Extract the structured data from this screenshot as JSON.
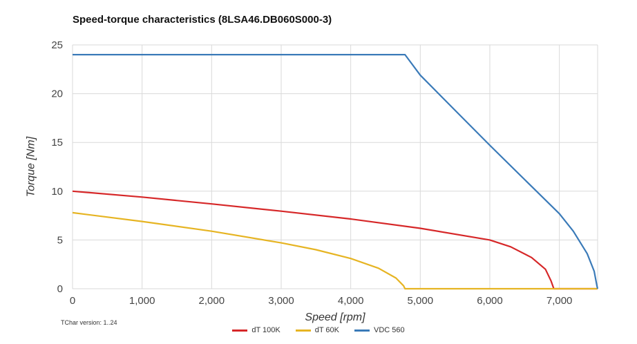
{
  "chart_data": {
    "type": "line",
    "title": "Speed-torque characteristics (8LSA46.DB060S000-3)",
    "xlabel": "Speed [rpm]",
    "ylabel": "Torque [Nm]",
    "xlim": [
      0,
      7550
    ],
    "ylim": [
      0,
      25
    ],
    "xticks": [
      0,
      1000,
      2000,
      3000,
      4000,
      5000,
      6000,
      7000
    ],
    "xtick_labels": [
      "0",
      "1,000",
      "2,000",
      "3,000",
      "4,000",
      "5,000",
      "6,000",
      "7,000"
    ],
    "yticks": [
      0,
      5,
      10,
      15,
      20,
      25
    ],
    "ytick_labels": [
      "0",
      "5",
      "10",
      "15",
      "20",
      "25"
    ],
    "grid": true,
    "legend_position": "bottom-center",
    "series": [
      {
        "name": "dT 100K",
        "color": "#d62728",
        "points": [
          [
            0,
            10.0
          ],
          [
            1000,
            9.4
          ],
          [
            2000,
            8.7
          ],
          [
            3000,
            7.95
          ],
          [
            4000,
            7.15
          ],
          [
            5000,
            6.2
          ],
          [
            6000,
            5.0
          ],
          [
            6300,
            4.3
          ],
          [
            6600,
            3.2
          ],
          [
            6800,
            2.0
          ],
          [
            6880,
            0.8
          ],
          [
            6920,
            0
          ],
          [
            7550,
            0
          ]
        ]
      },
      {
        "name": "dT 60K",
        "color": "#e6b422",
        "points": [
          [
            0,
            7.8
          ],
          [
            1000,
            6.9
          ],
          [
            2000,
            5.9
          ],
          [
            3000,
            4.7
          ],
          [
            3500,
            4.0
          ],
          [
            4000,
            3.1
          ],
          [
            4400,
            2.1
          ],
          [
            4650,
            1.1
          ],
          [
            4760,
            0.3
          ],
          [
            4780,
            0
          ],
          [
            7550,
            0
          ]
        ]
      },
      {
        "name": "VDC 560",
        "color": "#3a7ab8",
        "points": [
          [
            0,
            24.0
          ],
          [
            4780,
            24.0
          ],
          [
            5000,
            21.9
          ],
          [
            5500,
            18.3
          ],
          [
            6000,
            14.7
          ],
          [
            6500,
            11.2
          ],
          [
            7000,
            7.7
          ],
          [
            7200,
            5.9
          ],
          [
            7400,
            3.6
          ],
          [
            7500,
            1.8
          ],
          [
            7540,
            0.3
          ],
          [
            7550,
            0
          ]
        ]
      }
    ]
  },
  "footer": {
    "version_text": "TChar version: 1..24"
  }
}
